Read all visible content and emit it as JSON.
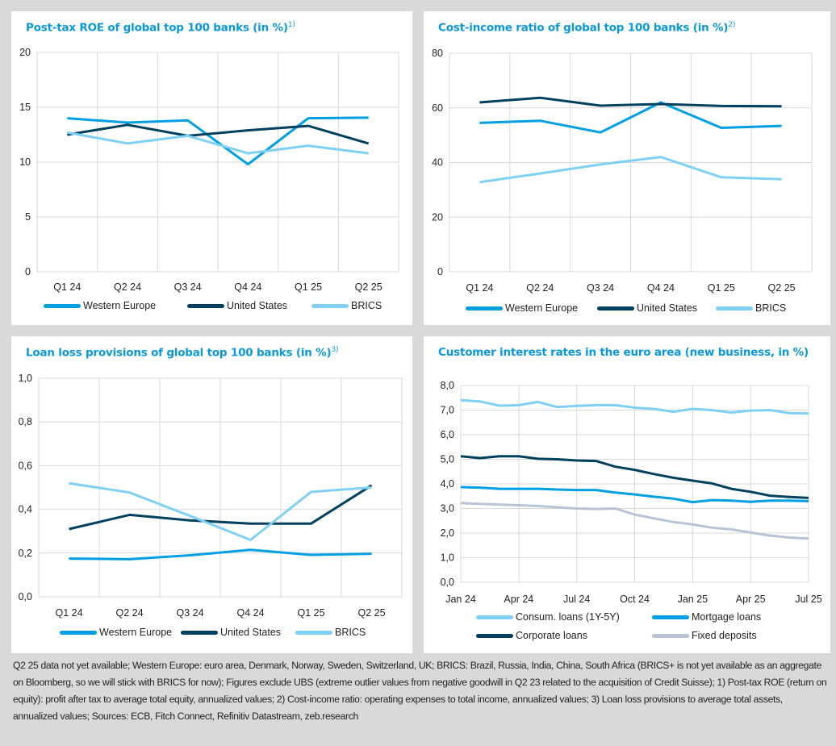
{
  "charts": [
    {
      "title": "Post-tax ROE of global top 100 banks (in %)",
      "footnote_ref": "1)",
      "type": "line",
      "categories": [
        "Q1 24",
        "Q2 24",
        "Q3 24",
        "Q4 24",
        "Q1 25",
        "Q2 25"
      ],
      "yticks": [
        "0",
        "5",
        "10",
        "15",
        "20"
      ],
      "ylim": [
        0,
        20
      ],
      "grid": true,
      "legend_position": "bottom",
      "series": [
        {
          "name": "Western Europe",
          "color": "#009fe3",
          "values": [
            14.0,
            13.6,
            13.8,
            9.8,
            14.0,
            14.05
          ]
        },
        {
          "name": "United States",
          "color": "#00405f",
          "values": [
            12.5,
            13.4,
            12.4,
            12.9,
            13.3,
            11.7
          ]
        },
        {
          "name": "BRICS",
          "color": "#7fd0f5",
          "values": [
            12.7,
            11.7,
            12.4,
            10.8,
            11.5,
            10.8
          ]
        }
      ]
    },
    {
      "title": "Cost-income ratio of global top 100 banks (in %)",
      "footnote_ref": "2)",
      "type": "line",
      "categories": [
        "Q1 24",
        "Q2 24",
        "Q3 24",
        "Q4 24",
        "Q1 25",
        "Q2 25"
      ],
      "yticks": [
        "0",
        "20",
        "40",
        "60",
        "80"
      ],
      "ylim": [
        0,
        80
      ],
      "grid": true,
      "legend_position": "bottom",
      "series": [
        {
          "name": "Western Europe",
          "color": "#009fe3",
          "values": [
            54.5,
            55.3,
            51.0,
            62.0,
            52.7,
            53.4
          ]
        },
        {
          "name": "United States",
          "color": "#00405f",
          "values": [
            62.0,
            63.7,
            60.8,
            61.4,
            60.7,
            60.6
          ]
        },
        {
          "name": "BRICS",
          "color": "#7fd0f5",
          "values": [
            32.8,
            36.0,
            39.3,
            42.0,
            34.6,
            33.9
          ]
        }
      ]
    },
    {
      "title": "Loan loss provisions of global top 100 banks (in %)",
      "footnote_ref": "3)",
      "type": "line",
      "categories": [
        "Q1 24",
        "Q2 24",
        "Q3 24",
        "Q4 24",
        "Q1 25",
        "Q2 25"
      ],
      "yticks": [
        "0,0",
        "0,2",
        "0,4",
        "0,6",
        "0,8",
        "1,0"
      ],
      "ylim": [
        0,
        1
      ],
      "grid": true,
      "legend_position": "bottom",
      "series": [
        {
          "name": "Western Europe",
          "color": "#009fe3",
          "values": [
            0.175,
            0.172,
            0.19,
            0.215,
            0.192,
            0.197
          ]
        },
        {
          "name": "United States",
          "color": "#00405f",
          "values": [
            0.31,
            0.375,
            0.35,
            0.335,
            0.335,
            0.51
          ]
        },
        {
          "name": "BRICS",
          "color": "#7fd0f5",
          "values": [
            0.52,
            0.477,
            0.37,
            0.26,
            0.48,
            0.5
          ]
        }
      ]
    },
    {
      "title": "Customer interest rates in the euro area (new business, in %)",
      "footnote_ref": "",
      "type": "line",
      "x": [
        "Jan 24",
        "Feb 24",
        "Mar 24",
        "Apr 24",
        "May 24",
        "Jun 24",
        "Jul 24",
        "Aug 24",
        "Sep 24",
        "Oct 24",
        "Nov 24",
        "Dec 24",
        "Jan 25",
        "Feb 25",
        "Mar 25",
        "Apr 25",
        "May 25",
        "Jun 25",
        "Jul 25"
      ],
      "categories": [
        "Jan 24",
        "Apr 24",
        "Jul 24",
        "Oct 24",
        "Jan 25",
        "Apr 25",
        "Jul 25"
      ],
      "yticks": [
        "0,0",
        "1,0",
        "2,0",
        "3,0",
        "4,0",
        "5,0",
        "6,0",
        "7,0",
        "8,0"
      ],
      "ylim": [
        0,
        8
      ],
      "grid": true,
      "legend_position": "bottom",
      "series": [
        {
          "name": "Consum. loans (1Y-5Y)",
          "color": "#7fd0f5",
          "values": [
            7.4,
            7.35,
            7.18,
            7.2,
            7.33,
            7.12,
            7.17,
            7.2,
            7.2,
            7.1,
            7.05,
            6.93,
            7.05,
            7.0,
            6.9,
            6.98,
            7.0,
            6.88,
            6.86
          ]
        },
        {
          "name": "Mortgage loans",
          "color": "#009fe3",
          "values": [
            3.87,
            3.85,
            3.8,
            3.8,
            3.8,
            3.77,
            3.75,
            3.75,
            3.65,
            3.57,
            3.48,
            3.4,
            3.26,
            3.34,
            3.32,
            3.27,
            3.32,
            3.32,
            3.3
          ]
        },
        {
          "name": "Corporate loans",
          "color": "#00405f",
          "values": [
            5.12,
            5.05,
            5.12,
            5.12,
            5.02,
            5.0,
            4.95,
            4.93,
            4.7,
            4.57,
            4.4,
            4.25,
            4.13,
            4.02,
            3.8,
            3.68,
            3.52,
            3.47,
            3.43
          ]
        },
        {
          "name": "Fixed deposits",
          "color": "#b8c4d6",
          "values": [
            3.22,
            3.19,
            3.16,
            3.13,
            3.1,
            3.05,
            3.0,
            2.98,
            3.0,
            2.75,
            2.6,
            2.45,
            2.35,
            2.22,
            2.15,
            2.02,
            1.9,
            1.82,
            1.78
          ]
        }
      ]
    }
  ],
  "footnote": "Q2 25 data not yet available; Western Europe: euro area, Denmark, Norway, Sweden, Switzerland, UK; BRICS: Brazil, Russia, India, China, South Africa (BRICS+ is not yet available as an aggregate on Bloomberg, so we will stick with BRICS for now); Figures exclude UBS (extreme outlier values from negative goodwill in Q2 23 related to the acquisition of Credit Suisse); 1) Post-tax ROE (return on equity): profit after tax to average total equity, annualized values; 2) Cost-income ratio: operating expenses to total income, annualized values; 3) Loan loss provisions to average total assets, annualized values; Sources: ECB, Fitch Connect, Refinitiv Datastream, zeb.research"
}
